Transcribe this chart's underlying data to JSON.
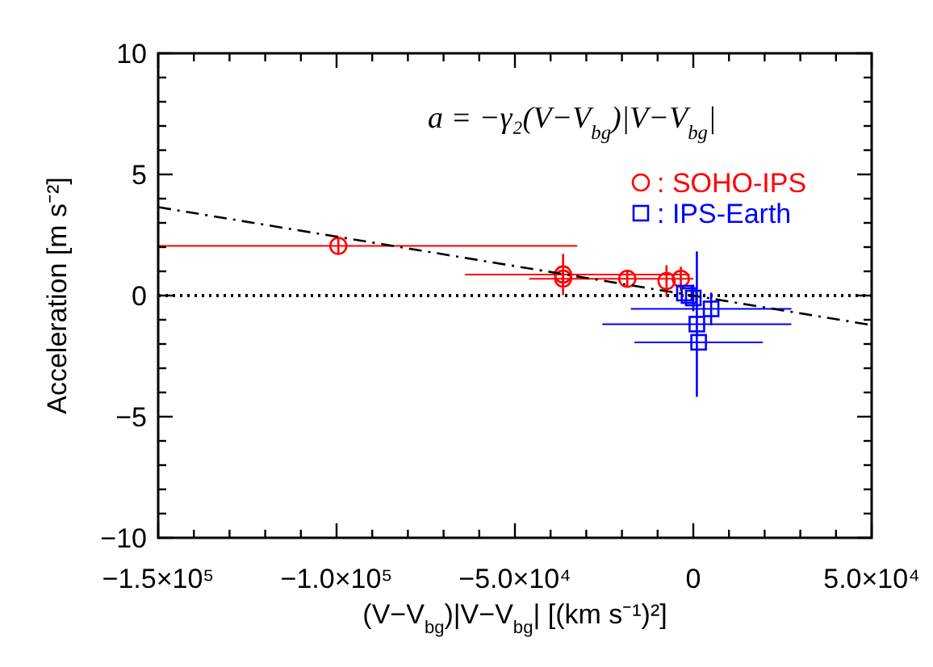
{
  "chart_data": {
    "type": "scatter",
    "xlabel": "(V−V$_{bg}$)|V−V$_{bg}$| [(km s⁻¹)²]",
    "ylabel": "Acceleration [m s⁻²]",
    "annotations": [
      "a = −γ₂(V−V$_{bg}$)|V−V$_{bg}$|"
    ],
    "xlim": [
      -150000,
      50000
    ],
    "xticks": [
      {
        "value": -150000,
        "label": "−1.5×10⁵"
      },
      {
        "value": -140000,
        "label": null
      },
      {
        "value": -130000,
        "label": null
      },
      {
        "value": -120000,
        "label": null
      },
      {
        "value": -110000,
        "label": null
      },
      {
        "value": -100000,
        "label": "−1.0×10⁵"
      },
      {
        "value": -90000,
        "label": null
      },
      {
        "value": -80000,
        "label": null
      },
      {
        "value": -70000,
        "label": null
      },
      {
        "value": -60000,
        "label": null
      },
      {
        "value": -50000,
        "label": "−5.0×10⁴"
      },
      {
        "value": -40000,
        "label": null
      },
      {
        "value": -30000,
        "label": null
      },
      {
        "value": -20000,
        "label": null
      },
      {
        "value": -10000,
        "label": null
      },
      0,
      {
        "value": 10000,
        "label": null
      },
      {
        "value": 20000,
        "label": null
      },
      {
        "value": 30000,
        "label": null
      },
      {
        "value": 40000,
        "label": null
      },
      {
        "value": 50000,
        "label": "5.0×10⁴"
      }
    ],
    "ylim": [
      -10,
      10
    ],
    "yticks": [
      -10,
      {
        "value": -9,
        "label": null
      },
      {
        "value": -8,
        "label": null
      },
      {
        "value": -7,
        "label": null
      },
      {
        "value": -6,
        "label": null
      },
      -5,
      {
        "value": -4,
        "label": null
      },
      {
        "value": -3,
        "label": null
      },
      {
        "value": -2,
        "label": null
      },
      {
        "value": -1,
        "label": null
      },
      0,
      {
        "value": 1,
        "label": null
      },
      {
        "value": 2,
        "label": null
      },
      {
        "value": 3,
        "label": null
      },
      {
        "value": 4,
        "label": null
      },
      5,
      {
        "value": 6,
        "label": null
      },
      {
        "value": 7,
        "label": null
      },
      {
        "value": 8,
        "label": null
      },
      {
        "value": 9,
        "label": null
      },
      10
    ],
    "ref_lines": [
      {
        "axis": "y",
        "value": 0,
        "color": "#000000",
        "line_style": "dotted"
      }
    ],
    "legend": "top right",
    "series": [
      {
        "name": ": SOHO-IPS",
        "marker": "circle",
        "color": "#ff0000",
        "x": [
          -99500,
          -36500,
          -36500,
          -18500,
          -7500,
          -3500
        ],
        "values": [
          2.05,
          0.87,
          0.7,
          0.69,
          0.6,
          0.69
        ],
        "errors": [
          0.3,
          0.85,
          0.3,
          0.35,
          0.65,
          0.5
        ],
        "xerrors": [
          [
            -150000,
            -32500
          ],
          [
            -64000,
            -1000
          ],
          null,
          [
            -46000,
            0
          ],
          null,
          null
        ]
      },
      {
        "name": ": IPS-Earth",
        "marker": "square",
        "color": "#0000ff",
        "x": [
          -2500,
          -1200,
          0,
          5000,
          1000,
          1500
        ],
        "values": [
          0.1,
          0,
          -0.1,
          -0.55,
          -1.18,
          -1.93
        ],
        "errors": [
          null,
          null,
          0.55,
          0.67,
          3.0,
          null
        ],
        "xerrors": [
          null,
          null,
          null,
          22500,
          26500,
          18000
        ]
      },
      {
        "type": "line",
        "color": "#000000",
        "line_style": "dashed",
        "x": [
          -150000,
          50000
        ],
        "values": [
          3.65,
          -1.22
        ]
      }
    ]
  }
}
